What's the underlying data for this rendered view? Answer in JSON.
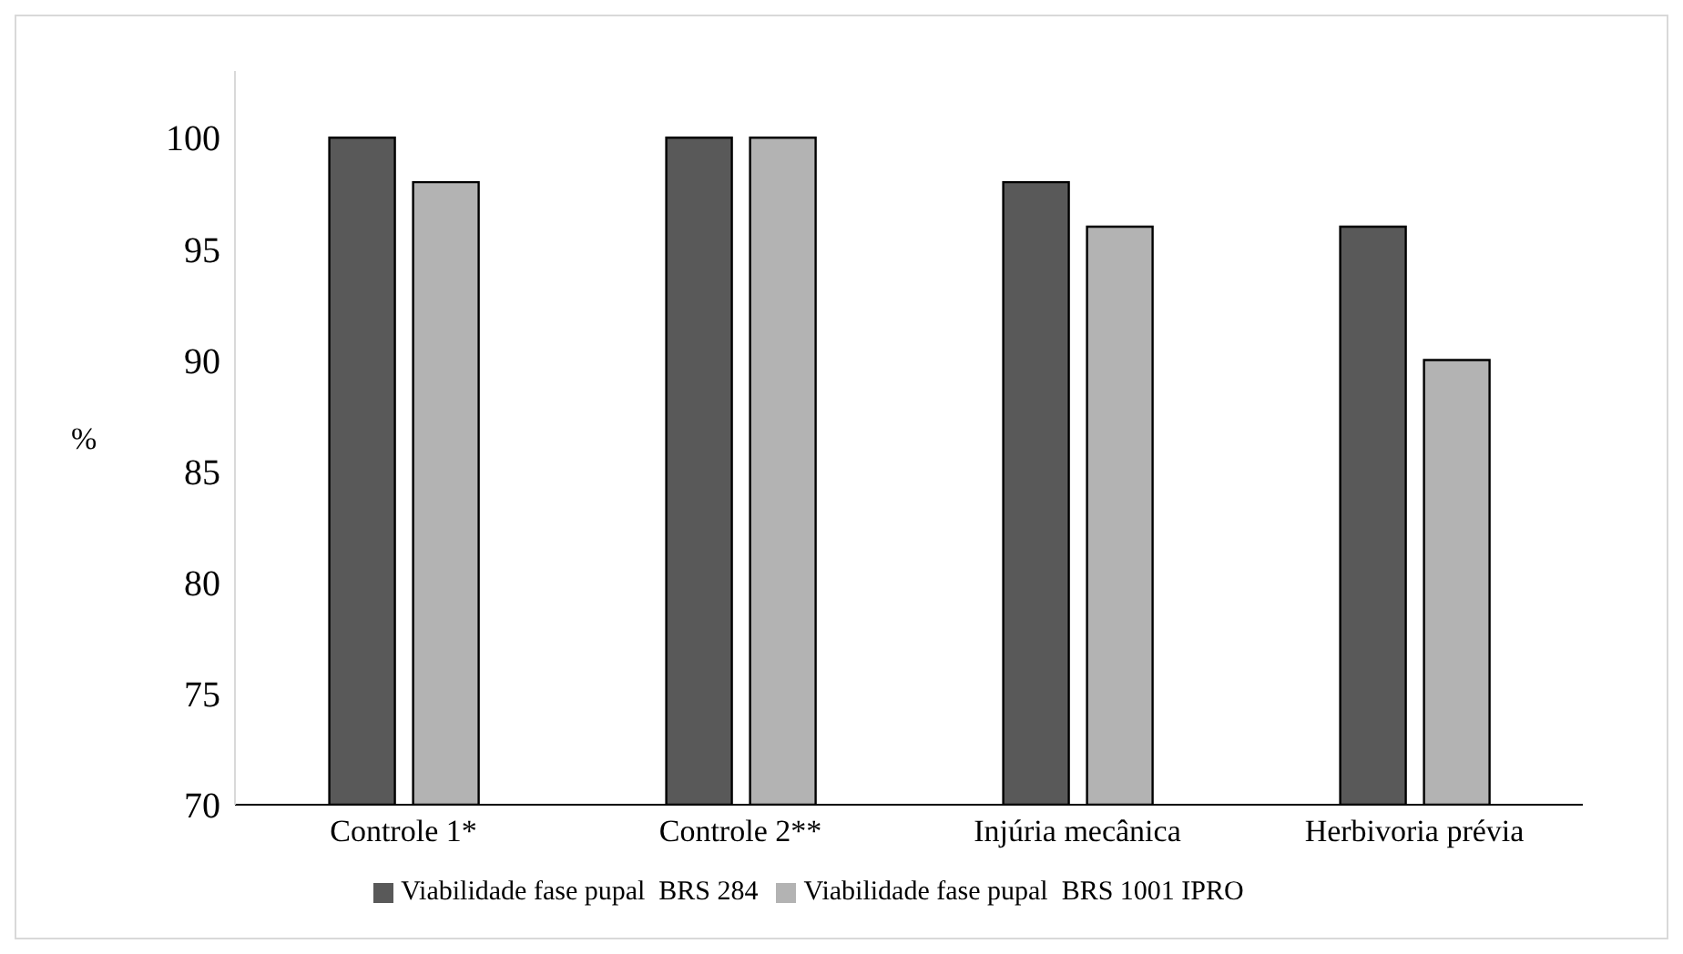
{
  "chart_data": {
    "type": "bar",
    "ylabel": "%",
    "categories": [
      "Controle 1*",
      "Controle 2**",
      "Injúria mecânica",
      "Herbivoria prévia"
    ],
    "series": [
      {
        "name": "Viabilidade fase pupal  BRS 284",
        "color": "#595959",
        "values": [
          100,
          100,
          98,
          96
        ]
      },
      {
        "name": "Viabilidade fase pupal  BRS 1001 IPRO",
        "color": "#b3b3b3",
        "values": [
          98,
          100,
          96,
          90
        ]
      }
    ],
    "ylim": [
      70,
      103
    ],
    "yticks": [
      70,
      75,
      80,
      85,
      90,
      95,
      100
    ],
    "grid": false,
    "legend": "bottom"
  }
}
